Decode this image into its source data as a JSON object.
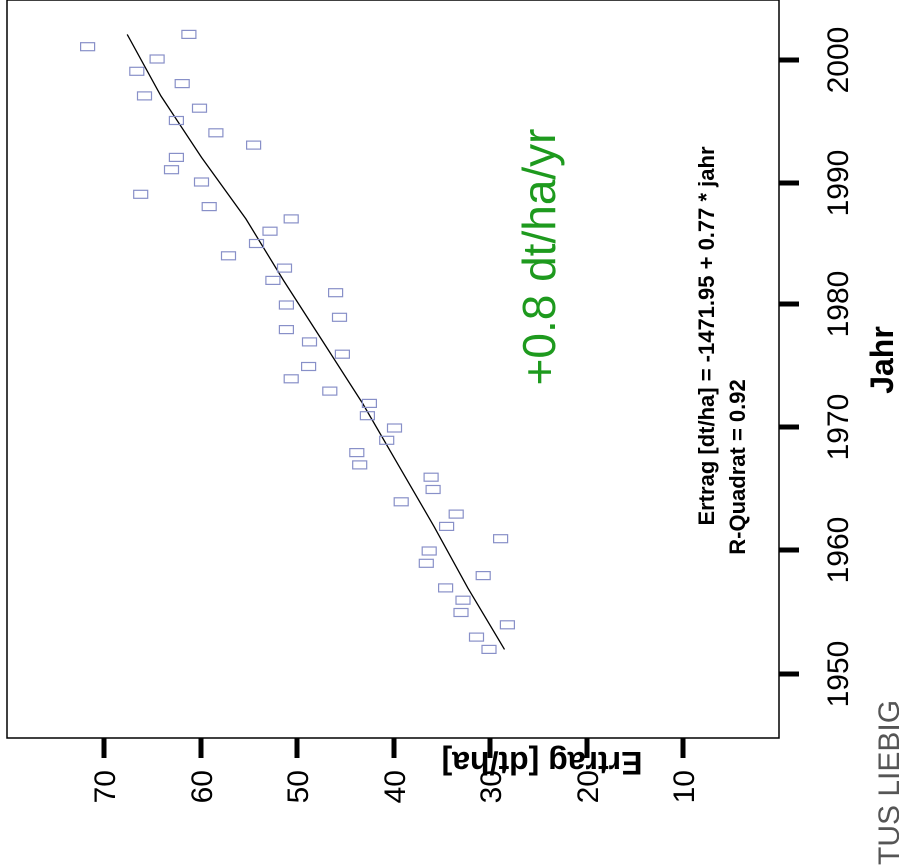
{
  "chart_data": {
    "type": "scatter",
    "xlabel": "Jahr",
    "ylabel": "Ertrag [dt/ha]",
    "xlim": [
      1945,
      2004
    ],
    "ylim": [
      5,
      83
    ],
    "x_ticks": [
      "1950",
      "1960",
      "1970",
      "1980",
      "1990",
      "2000"
    ],
    "y_ticks": [
      "10",
      "20",
      "30",
      "40",
      "50",
      "60",
      "70"
    ],
    "grid": false,
    "orientation": "rotated 90° counter-clockwise",
    "annotations": {
      "rate": "+0.8 dt/ha/yr",
      "equation": "Ertrag [dt/ha] = -1471.95 + 0.77 * jahr",
      "r_squared": "R-Quadrat = 0.92",
      "watermark": "TUS LIEBIG"
    },
    "colors": {
      "points": "#8890c8",
      "trend": "#000000",
      "rate_text": "#1e9a1e"
    },
    "points": [
      {
        "x": 1952,
        "y": 30.1
      },
      {
        "x": 1953,
        "y": 31.4
      },
      {
        "x": 1954,
        "y": 28.2
      },
      {
        "x": 1955,
        "y": 33.0
      },
      {
        "x": 1956,
        "y": 32.8
      },
      {
        "x": 1957,
        "y": 34.6
      },
      {
        "x": 1958,
        "y": 30.7
      },
      {
        "x": 1959,
        "y": 36.6
      },
      {
        "x": 1960,
        "y": 36.3
      },
      {
        "x": 1961,
        "y": 28.9
      },
      {
        "x": 1962,
        "y": 34.5
      },
      {
        "x": 1963,
        "y": 33.5
      },
      {
        "x": 1964,
        "y": 39.2
      },
      {
        "x": 1965,
        "y": 35.9
      },
      {
        "x": 1966,
        "y": 36.1
      },
      {
        "x": 1967,
        "y": 43.5
      },
      {
        "x": 1968,
        "y": 43.8
      },
      {
        "x": 1969,
        "y": 40.7
      },
      {
        "x": 1970,
        "y": 39.9
      },
      {
        "x": 1971,
        "y": 42.7
      },
      {
        "x": 1972,
        "y": 42.5
      },
      {
        "x": 1973,
        "y": 46.6
      },
      {
        "x": 1974,
        "y": 50.6
      },
      {
        "x": 1975,
        "y": 48.8
      },
      {
        "x": 1976,
        "y": 45.3
      },
      {
        "x": 1977,
        "y": 48.7
      },
      {
        "x": 1978,
        "y": 51.1
      },
      {
        "x": 1979,
        "y": 45.6
      },
      {
        "x": 1980,
        "y": 51.1
      },
      {
        "x": 1981,
        "y": 46.0
      },
      {
        "x": 1982,
        "y": 52.5
      },
      {
        "x": 1983,
        "y": 51.3
      },
      {
        "x": 1984,
        "y": 57.1
      },
      {
        "x": 1985,
        "y": 54.2
      },
      {
        "x": 1986,
        "y": 52.8
      },
      {
        "x": 1987,
        "y": 50.6
      },
      {
        "x": 1988,
        "y": 59.1
      },
      {
        "x": 1989,
        "y": 66.2
      },
      {
        "x": 1990,
        "y": 59.9
      },
      {
        "x": 1991,
        "y": 63.0
      },
      {
        "x": 1992,
        "y": 62.5
      },
      {
        "x": 1993,
        "y": 54.5
      },
      {
        "x": 1994,
        "y": 58.4
      },
      {
        "x": 1995,
        "y": 62.5
      },
      {
        "x": 1996,
        "y": 60.1
      },
      {
        "x": 1997,
        "y": 65.8
      },
      {
        "x": 1998,
        "y": 61.9
      },
      {
        "x": 1999,
        "y": 66.6
      },
      {
        "x": 2000,
        "y": 64.5
      },
      {
        "x": 2001,
        "y": 71.7
      },
      {
        "x": 2002,
        "y": 61.2
      }
    ],
    "trend": {
      "x": [
        1952,
        1957,
        1962,
        1967,
        1972,
        1977,
        1982,
        1987,
        1992,
        1997,
        2002
      ],
      "y": [
        28.5,
        32.3,
        35.8,
        39.5,
        43.2,
        47.3,
        51.4,
        55.3,
        59.9,
        64.1,
        67.6
      ]
    }
  }
}
